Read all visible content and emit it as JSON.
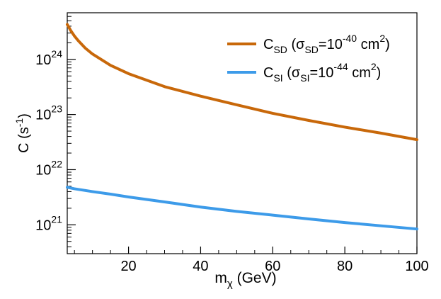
{
  "chart_data": {
    "type": "line",
    "x_scale": "linear",
    "y_scale": "log",
    "xlim": [
      3,
      100
    ],
    "ylim": [
      3e+20,
      7e+24
    ],
    "xlabel": {
      "base": "m",
      "sub": "χ",
      "rest": " (GeV)"
    },
    "ylabel": {
      "base": "C (s",
      "sup": "-1",
      "close": ")"
    },
    "x_ticks": [
      20,
      40,
      60,
      80,
      100
    ],
    "x_tick_labels": [
      "20",
      "40",
      "60",
      "80",
      "100"
    ],
    "y_ticks": [
      1e+21,
      1e+22,
      1e+23,
      1e+24
    ],
    "y_tick_labels": [
      {
        "base": "10",
        "exp": "21"
      },
      {
        "base": "10",
        "exp": "22"
      },
      {
        "base": "10",
        "exp": "23"
      },
      {
        "base": "10",
        "exp": "24"
      }
    ],
    "legend_position": "top-right",
    "series": [
      {
        "name": "C_SD",
        "color": "#c8680a",
        "legend": {
          "main": "C",
          "main_sub": "SD",
          "open": " (σ",
          "sigma_sub": "SD",
          "eq": "=10",
          "exp": "-40",
          "unit": " cm",
          "unit_sup": "2",
          "close": ")"
        },
        "x": [
          3,
          4,
          5,
          6,
          8,
          10,
          15,
          20,
          30,
          40,
          50,
          60,
          70,
          80,
          90,
          100
        ],
        "y": [
          4.3e+24,
          3.3e+24,
          2.65e+24,
          2.2e+24,
          1.6e+24,
          1.25e+24,
          7.8e+23,
          5.5e+23,
          3.2e+23,
          2.15e+23,
          1.5e+23,
          1.05e+23,
          7.8e+22,
          5.9e+22,
          4.6e+22,
          3.5e+22
        ]
      },
      {
        "name": "C_SI",
        "color": "#3d9be9",
        "legend": {
          "main": "C",
          "main_sub": "SI",
          "open": " (σ",
          "sigma_sub": "SI",
          "eq": "=10",
          "exp": "-44",
          "unit": " cm",
          "unit_sup": "2",
          "close": ")"
        },
        "x": [
          3,
          5,
          10,
          15,
          20,
          30,
          40,
          50,
          60,
          70,
          80,
          90,
          100
        ],
        "y": [
          4.8e+21,
          4.5e+21,
          4e+21,
          3.6e+21,
          3.2e+21,
          2.6e+21,
          2.1e+21,
          1.75e+21,
          1.5e+21,
          1.28e+21,
          1.1e+21,
          9.6e+20,
          8.4e+20
        ]
      }
    ]
  }
}
